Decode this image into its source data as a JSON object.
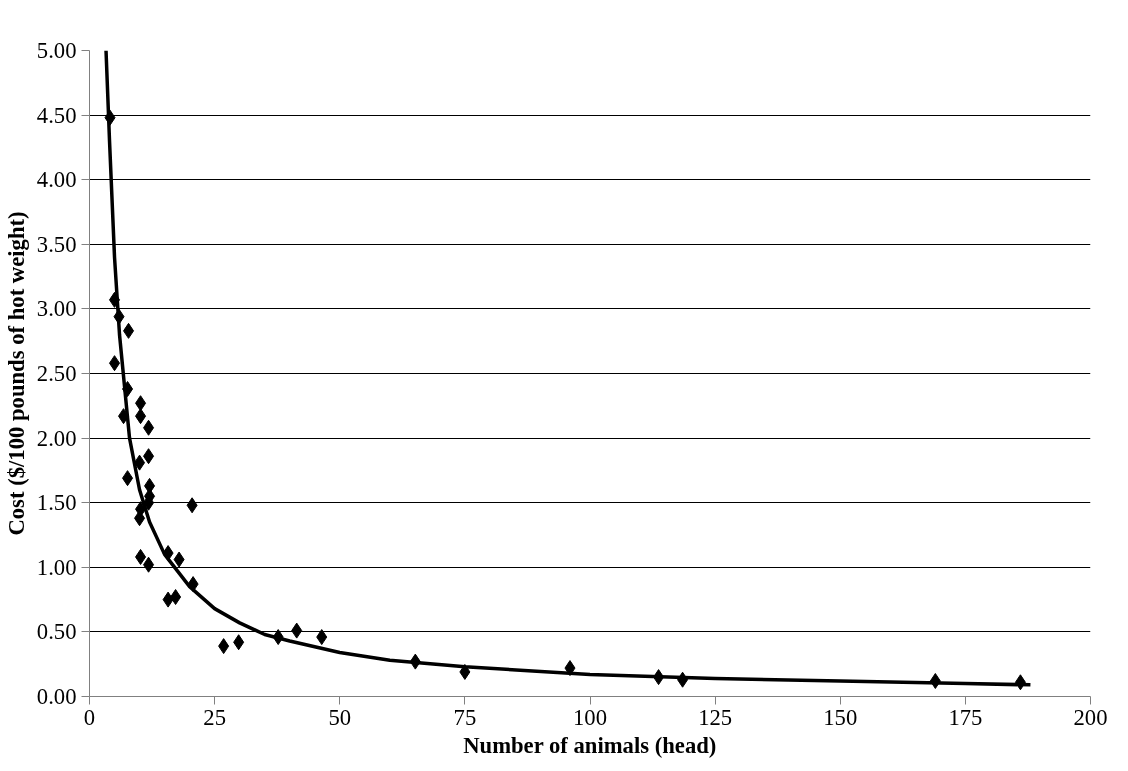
{
  "chart_data": {
    "type": "scatter",
    "xlabel": "Number of animals (head)",
    "ylabel": "Cost ($/100 pounds of hot weight)",
    "grid": "y",
    "xlim": [
      0,
      200
    ],
    "xticks": [
      0,
      25,
      50,
      75,
      100,
      125,
      150,
      175,
      200
    ],
    "ylim": [
      0,
      5
    ],
    "yticks": [
      {
        "value": 0,
        "label": "0.00"
      },
      {
        "value": 0.5,
        "label": "0.50"
      },
      {
        "value": 1,
        "label": "1.00"
      },
      {
        "value": 1.5,
        "label": "1.50"
      },
      {
        "value": 2,
        "label": "2.00"
      },
      {
        "value": 2.5,
        "label": "2.50"
      },
      {
        "value": 3,
        "label": "3.00"
      },
      {
        "value": 3.5,
        "label": "3.50"
      },
      {
        "value": 4,
        "label": "4.00"
      },
      {
        "value": 4.5,
        "label": "4.50"
      },
      {
        "value": 5,
        "label": "5.00"
      }
    ],
    "series": [
      {
        "marker": "diamond",
        "color": "#000000",
        "x": [
          4.1,
          5.0,
          5.9,
          7.8,
          5.0,
          7.6,
          6.8,
          10.2,
          10.2,
          11.8,
          7.6,
          11.8,
          10.0,
          12.0,
          12.0,
          11.8,
          10.2,
          10.0,
          20.5,
          10.2,
          11.8,
          15.7,
          17.9,
          15.7,
          17.2,
          20.7,
          26.8,
          29.8,
          37.7,
          41.4,
          46.4,
          65.1,
          75,
          96,
          113.7,
          118.5,
          169,
          186
        ],
        "values": [
          4.48,
          3.07,
          2.94,
          2.83,
          2.58,
          2.38,
          2.17,
          2.27,
          2.17,
          2.08,
          1.69,
          1.86,
          1.81,
          1.63,
          1.55,
          1.5,
          1.45,
          1.38,
          1.48,
          1.08,
          1.02,
          1.11,
          1.06,
          0.75,
          0.77,
          0.87,
          0.39,
          0.42,
          0.46,
          0.51,
          0.46,
          0.27,
          0.19,
          0.22,
          0.15,
          0.13,
          0.12,
          0.11
        ]
      },
      {
        "type": "line",
        "color": "#000000",
        "line_style": "solid",
        "x": [
          3.3,
          4,
          5,
          6,
          8,
          10,
          12,
          15,
          20,
          25,
          30,
          35,
          40,
          50,
          60,
          75,
          100,
          125,
          150,
          175,
          188
        ],
        "values": [
          5.0,
          4.3,
          3.4,
          2.8,
          2.0,
          1.6,
          1.35,
          1.1,
          0.85,
          0.68,
          0.57,
          0.48,
          0.43,
          0.34,
          0.28,
          0.23,
          0.17,
          0.14,
          0.12,
          0.1,
          0.09
        ]
      }
    ]
  }
}
